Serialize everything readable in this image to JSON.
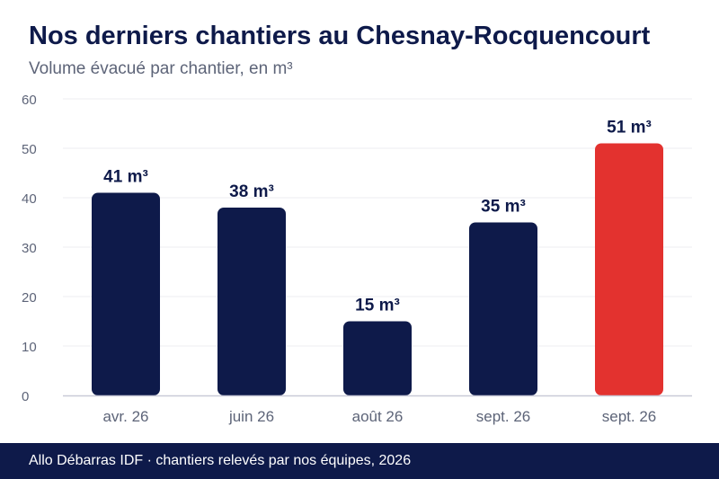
{
  "chart_data": {
    "type": "bar",
    "title": "Nos derniers chantiers au Chesnay-Rocquencourt",
    "subtitle": "Volume évacué par chantier, en m³",
    "categories": [
      "avr. 26",
      "juin 26",
      "août 26",
      "sept. 26",
      "sept. 26"
    ],
    "values": [
      41,
      38,
      15,
      35,
      51
    ],
    "data_labels": [
      "41 m³",
      "38 m³",
      "15 m³",
      "35 m³",
      "51 m³"
    ],
    "highlight_index": 4,
    "ylim": [
      0,
      60
    ],
    "yticks": [
      0,
      10,
      20,
      30,
      40,
      50,
      60
    ],
    "grid": true,
    "colors": {
      "bar": "#0e1a4a",
      "highlight": "#e3322f",
      "grid": "#ececf0",
      "axis": "#c9cad8",
      "tick_text": "#5d6478",
      "label_text": "#0e1a4a"
    }
  },
  "footer": {
    "text": "Allo Débarras IDF · chantiers relevés par nos équipes, 2026"
  }
}
